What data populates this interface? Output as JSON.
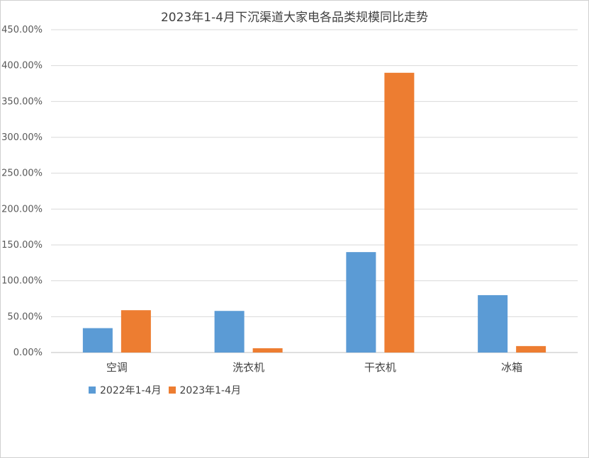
{
  "chart_data": {
    "type": "bar",
    "title": "2023年1-4月下沉渠道大家电各品类规模同比走势",
    "categories": [
      "空调",
      "洗衣机",
      "干衣机",
      "冰箱"
    ],
    "series": [
      {
        "name": "2022年1-4月",
        "color": "#5b9bd5",
        "values": [
          34,
          58,
          140,
          80
        ]
      },
      {
        "name": "2023年1-4月",
        "color": "#ed7d31",
        "values": [
          59,
          6,
          390,
          9
        ]
      }
    ],
    "yticks": [
      "0.00%",
      "50.00%",
      "100.00%",
      "150.00%",
      "200.00%",
      "250.00%",
      "300.00%",
      "350.00%",
      "400.00%",
      "450.00%"
    ],
    "ylim": [
      0,
      450
    ],
    "unit": "%",
    "grid": true,
    "legend_position": "bottom-left"
  }
}
